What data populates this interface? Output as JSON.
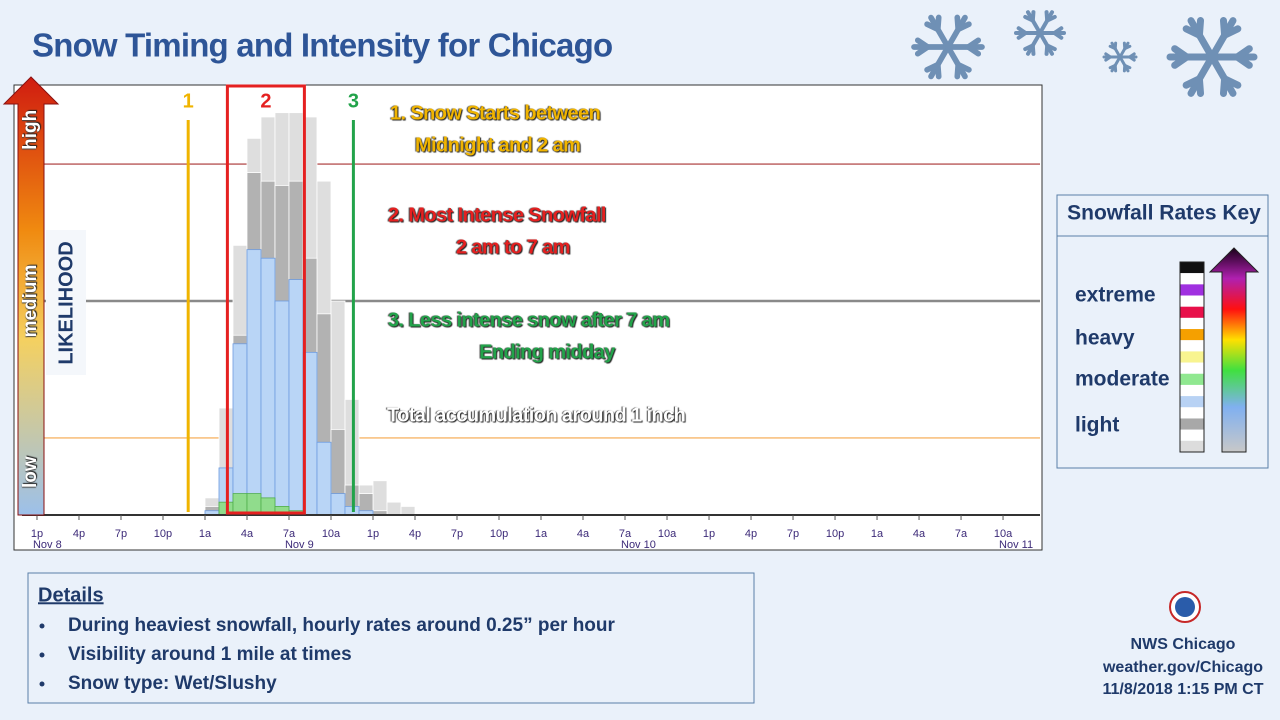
{
  "header": {
    "title": "Snow Timing and Intensity for Chicago"
  },
  "chart_data": {
    "type": "bar",
    "y_label": "LIKELIHOOD",
    "xlim": [
      -1.07,
      71.64
    ],
    "ylim": [
      0,
      100
    ],
    "yticks": [
      {
        "value": 10,
        "label": "low"
      },
      {
        "value": 50,
        "label": "medium"
      },
      {
        "value": 90,
        "label": "high"
      }
    ],
    "xticks": [
      {
        "value": 0,
        "label": "1p"
      },
      {
        "value": 3,
        "label": "4p"
      },
      {
        "value": 6,
        "label": "7p"
      },
      {
        "value": 9,
        "label": "10p"
      },
      {
        "value": 12,
        "label": "1a"
      },
      {
        "value": 15,
        "label": "4a"
      },
      {
        "value": 18,
        "label": "7a"
      },
      {
        "value": 21,
        "label": "10a"
      },
      {
        "value": 24,
        "label": "1p"
      },
      {
        "value": 27,
        "label": "4p"
      },
      {
        "value": 30,
        "label": "7p"
      },
      {
        "value": 33,
        "label": "10p"
      },
      {
        "value": 36,
        "label": "1a"
      },
      {
        "value": 39,
        "label": "4a"
      },
      {
        "value": 42,
        "label": "7a"
      },
      {
        "value": 45,
        "label": "10a"
      },
      {
        "value": 48,
        "label": "1p"
      },
      {
        "value": 51,
        "label": "4p"
      },
      {
        "value": 54,
        "label": "7p"
      },
      {
        "value": 57,
        "label": "10p"
      },
      {
        "value": 60,
        "label": "1a"
      },
      {
        "value": 63,
        "label": "4a"
      },
      {
        "value": 66,
        "label": "7a"
      },
      {
        "value": 69,
        "label": "10a"
      }
    ],
    "date_labels": [
      {
        "value": 0,
        "label": "Nov  8"
      },
      {
        "value": 18,
        "label": "Nov  9"
      },
      {
        "value": 42,
        "label": "Nov 10"
      },
      {
        "value": 69,
        "label": "Nov 11"
      }
    ],
    "x": [
      12,
      13,
      14,
      15,
      16,
      17,
      18,
      19,
      20,
      21,
      22,
      23,
      24,
      25,
      26
    ],
    "series": [
      {
        "color": "#dedede",
        "values": [
          4,
          25,
          63,
          88,
          93,
          94,
          94,
          93,
          78,
          50,
          27,
          7,
          8,
          3,
          2
        ]
      },
      {
        "color": "#b2b2b2",
        "values": [
          2,
          10,
          42,
          80,
          78,
          77,
          78,
          60,
          47,
          20,
          7,
          5,
          1,
          null,
          null
        ]
      },
      {
        "color": "#b9d5f6",
        "values": [
          1,
          11,
          40,
          62,
          60,
          50,
          55,
          38,
          17,
          5,
          2,
          1,
          null,
          null,
          null
        ]
      },
      {
        "color": "#90dc8c",
        "values": [
          null,
          3,
          5,
          5,
          4,
          2,
          1,
          null,
          null,
          null,
          null,
          null,
          null,
          null,
          null
        ]
      }
    ],
    "reference_lines": [
      {
        "value": 82,
        "color": "#a83232"
      },
      {
        "value": 50,
        "color": "#8a8a8a"
      },
      {
        "value": 18,
        "color": "#f5a64a"
      }
    ],
    "markers": [
      {
        "label": "1",
        "x": 10.8,
        "color": "#f0b400"
      },
      {
        "label": "2",
        "x_range": [
          13.6,
          19.1
        ],
        "color": "#e52020"
      },
      {
        "label": "3",
        "x": 22.6,
        "color": "#22a34a"
      }
    ],
    "annotations": [
      {
        "lines": [
          "1. Snow Starts between",
          "Midnight and 2 am"
        ],
        "color": "#f0b400"
      },
      {
        "lines": [
          "2. Most Intense Snowfall",
          "2 am to 7 am"
        ],
        "color": "#e52020"
      },
      {
        "lines": [
          "3. Less intense snow after 7 am",
          "Ending midday"
        ],
        "color": "#22a34a"
      },
      {
        "lines": [
          "Total accumulation around 1 inch"
        ],
        "color": "#ffffff"
      }
    ]
  },
  "key": {
    "title": "Snowfall Rates Key",
    "items": [
      "extreme",
      "heavy",
      "moderate",
      "light"
    ]
  },
  "details": {
    "title": "Details",
    "bullets": [
      "During heaviest snowfall, hourly rates around  0.25” per hour",
      "Visibility around  1 mile at times",
      "Snow type: Wet/Slushy"
    ]
  },
  "footer": {
    "office": "NWS Chicago",
    "site": "weather.gov/Chicago",
    "timestamp": "11/8/2018 1:15 PM CT"
  }
}
